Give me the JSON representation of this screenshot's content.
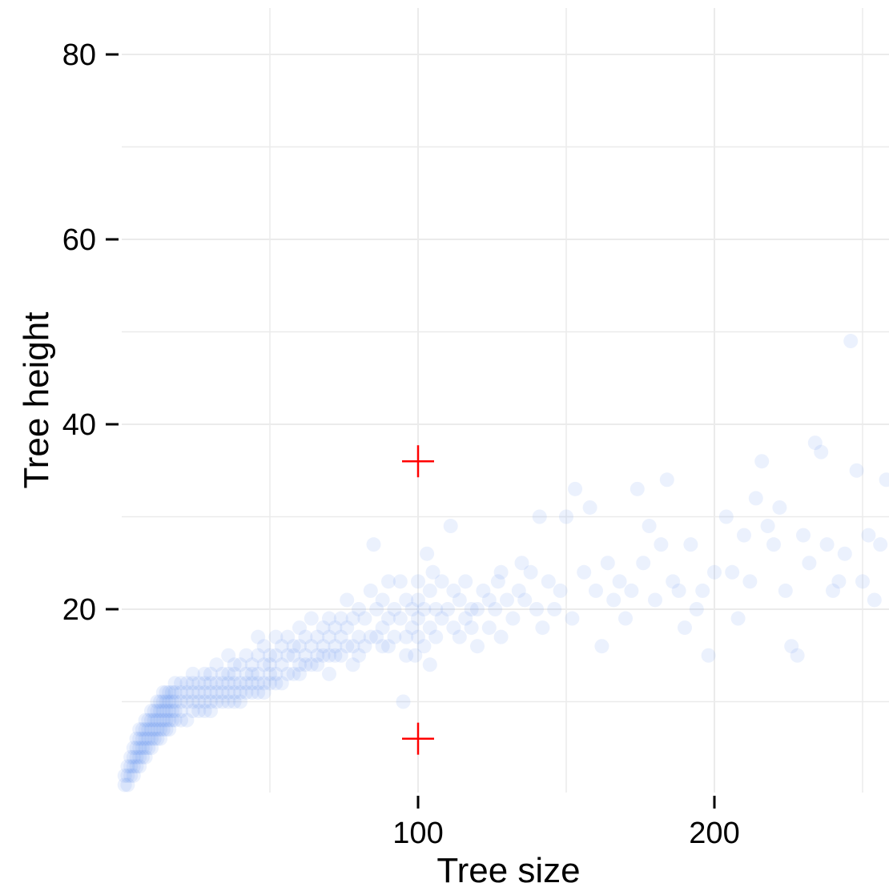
{
  "chart_data": {
    "type": "scatter",
    "title": "",
    "xlabel": "Tree size",
    "ylabel": "Tree height",
    "xlim": [
      0,
      260
    ],
    "ylim": [
      0,
      85
    ],
    "x_ticks": [
      100,
      200
    ],
    "y_ticks": [
      20,
      40,
      60,
      80
    ],
    "grid": true,
    "colors": {
      "points": "#6495ED",
      "markers": "#FF0000",
      "grid": "#ebebeb"
    },
    "series": [
      {
        "type": "scatter",
        "style": "semi-transparent circles",
        "points": [
          [
            1,
            1
          ],
          [
            1,
            2
          ],
          [
            2,
            1
          ],
          [
            2,
            2
          ],
          [
            2,
            3
          ],
          [
            3,
            2
          ],
          [
            3,
            3
          ],
          [
            3,
            4
          ],
          [
            4,
            2
          ],
          [
            4,
            3
          ],
          [
            4,
            4
          ],
          [
            4,
            5
          ],
          [
            5,
            3
          ],
          [
            5,
            4
          ],
          [
            5,
            5
          ],
          [
            5,
            6
          ],
          [
            6,
            3
          ],
          [
            6,
            4
          ],
          [
            6,
            5
          ],
          [
            6,
            6
          ],
          [
            6,
            7
          ],
          [
            7,
            4
          ],
          [
            7,
            5
          ],
          [
            7,
            6
          ],
          [
            7,
            7
          ],
          [
            8,
            4
          ],
          [
            8,
            5
          ],
          [
            8,
            6
          ],
          [
            8,
            7
          ],
          [
            8,
            8
          ],
          [
            9,
            5
          ],
          [
            9,
            6
          ],
          [
            9,
            7
          ],
          [
            9,
            8
          ],
          [
            10,
            5
          ],
          [
            10,
            6
          ],
          [
            10,
            7
          ],
          [
            10,
            8
          ],
          [
            10,
            9
          ],
          [
            11,
            6
          ],
          [
            11,
            7
          ],
          [
            11,
            8
          ],
          [
            11,
            9
          ],
          [
            12,
            6
          ],
          [
            12,
            7
          ],
          [
            12,
            8
          ],
          [
            12,
            9
          ],
          [
            12,
            10
          ],
          [
            13,
            6
          ],
          [
            13,
            7
          ],
          [
            13,
            8
          ],
          [
            13,
            9
          ],
          [
            13,
            10
          ],
          [
            14,
            7
          ],
          [
            14,
            8
          ],
          [
            14,
            9
          ],
          [
            14,
            10
          ],
          [
            14,
            11
          ],
          [
            15,
            7
          ],
          [
            15,
            8
          ],
          [
            15,
            9
          ],
          [
            15,
            10
          ],
          [
            15,
            11
          ],
          [
            16,
            7
          ],
          [
            16,
            8
          ],
          [
            16,
            9
          ],
          [
            16,
            10
          ],
          [
            16,
            11
          ],
          [
            17,
            8
          ],
          [
            17,
            9
          ],
          [
            17,
            10
          ],
          [
            17,
            11
          ],
          [
            18,
            8
          ],
          [
            18,
            9
          ],
          [
            18,
            10
          ],
          [
            18,
            11
          ],
          [
            18,
            12
          ],
          [
            20,
            8
          ],
          [
            20,
            9
          ],
          [
            20,
            10
          ],
          [
            20,
            11
          ],
          [
            20,
            12
          ],
          [
            22,
            8
          ],
          [
            22,
            10
          ],
          [
            22,
            11
          ],
          [
            22,
            12
          ],
          [
            24,
            9
          ],
          [
            24,
            10
          ],
          [
            24,
            11
          ],
          [
            24,
            12
          ],
          [
            24,
            13
          ],
          [
            26,
            9
          ],
          [
            26,
            10
          ],
          [
            26,
            11
          ],
          [
            26,
            12
          ],
          [
            28,
            9
          ],
          [
            28,
            10
          ],
          [
            28,
            11
          ],
          [
            28,
            12
          ],
          [
            28,
            13
          ],
          [
            30,
            9
          ],
          [
            30,
            10
          ],
          [
            30,
            11
          ],
          [
            30,
            12
          ],
          [
            30,
            13
          ],
          [
            32,
            10
          ],
          [
            32,
            11
          ],
          [
            32,
            12
          ],
          [
            32,
            14
          ],
          [
            34,
            10
          ],
          [
            34,
            11
          ],
          [
            34,
            12
          ],
          [
            34,
            13
          ],
          [
            36,
            10
          ],
          [
            36,
            11
          ],
          [
            36,
            12
          ],
          [
            36,
            13
          ],
          [
            36,
            15
          ],
          [
            38,
            10
          ],
          [
            38,
            11
          ],
          [
            38,
            12
          ],
          [
            38,
            13
          ],
          [
            38,
            14
          ],
          [
            40,
            10
          ],
          [
            40,
            11
          ],
          [
            40,
            12
          ],
          [
            40,
            14
          ],
          [
            42,
            11
          ],
          [
            42,
            12
          ],
          [
            42,
            13
          ],
          [
            42,
            15
          ],
          [
            44,
            11
          ],
          [
            44,
            12
          ],
          [
            44,
            13
          ],
          [
            44,
            14
          ],
          [
            46,
            11
          ],
          [
            46,
            12
          ],
          [
            46,
            13
          ],
          [
            46,
            15
          ],
          [
            46,
            17
          ],
          [
            48,
            11
          ],
          [
            48,
            12
          ],
          [
            48,
            14
          ],
          [
            48,
            16
          ],
          [
            50,
            12
          ],
          [
            50,
            13
          ],
          [
            50,
            14
          ],
          [
            50,
            15
          ],
          [
            52,
            12
          ],
          [
            52,
            13
          ],
          [
            52,
            15
          ],
          [
            52,
            17
          ],
          [
            54,
            12
          ],
          [
            54,
            14
          ],
          [
            54,
            16
          ],
          [
            56,
            13
          ],
          [
            56,
            15
          ],
          [
            56,
            17
          ],
          [
            58,
            13
          ],
          [
            58,
            15
          ],
          [
            58,
            16
          ],
          [
            60,
            13
          ],
          [
            60,
            14
          ],
          [
            60,
            16
          ],
          [
            60,
            18
          ],
          [
            62,
            14
          ],
          [
            62,
            15
          ],
          [
            62,
            17
          ],
          [
            64,
            14
          ],
          [
            64,
            16
          ],
          [
            64,
            19
          ],
          [
            66,
            14
          ],
          [
            66,
            15
          ],
          [
            66,
            17
          ],
          [
            68,
            15
          ],
          [
            68,
            16
          ],
          [
            68,
            18
          ],
          [
            70,
            13
          ],
          [
            70,
            15
          ],
          [
            70,
            17
          ],
          [
            70,
            19
          ],
          [
            72,
            15
          ],
          [
            72,
            16
          ],
          [
            72,
            18
          ],
          [
            74,
            15
          ],
          [
            74,
            17
          ],
          [
            74,
            19
          ],
          [
            76,
            16
          ],
          [
            76,
            18
          ],
          [
            76,
            21
          ],
          [
            78,
            14
          ],
          [
            78,
            16
          ],
          [
            78,
            19
          ],
          [
            80,
            15
          ],
          [
            80,
            17
          ],
          [
            80,
            20
          ],
          [
            82,
            16
          ],
          [
            82,
            19
          ],
          [
            84,
            17
          ],
          [
            84,
            22
          ],
          [
            85,
            27
          ],
          [
            86,
            17
          ],
          [
            86,
            20
          ],
          [
            88,
            16
          ],
          [
            88,
            18
          ],
          [
            88,
            21
          ],
          [
            90,
            16
          ],
          [
            90,
            19
          ],
          [
            90,
            23
          ],
          [
            92,
            17
          ],
          [
            92,
            20
          ],
          [
            94,
            19
          ],
          [
            94,
            23
          ],
          [
            95,
            10
          ],
          [
            96,
            15
          ],
          [
            96,
            17
          ],
          [
            96,
            21
          ],
          [
            98,
            18
          ],
          [
            98,
            20
          ],
          [
            99,
            15
          ],
          [
            100,
            17
          ],
          [
            100,
            19
          ],
          [
            100,
            21
          ],
          [
            100,
            23
          ],
          [
            102,
            16
          ],
          [
            102,
            20
          ],
          [
            103,
            26
          ],
          [
            104,
            14
          ],
          [
            104,
            18
          ],
          [
            104,
            22
          ],
          [
            105,
            24
          ],
          [
            106,
            17
          ],
          [
            106,
            20
          ],
          [
            108,
            19
          ],
          [
            108,
            23
          ],
          [
            110,
            20
          ],
          [
            111,
            29
          ],
          [
            112,
            18
          ],
          [
            112,
            22
          ],
          [
            114,
            17
          ],
          [
            114,
            21
          ],
          [
            116,
            19
          ],
          [
            116,
            23
          ],
          [
            118,
            18
          ],
          [
            118,
            20
          ],
          [
            120,
            16
          ],
          [
            120,
            20
          ],
          [
            122,
            22
          ],
          [
            124,
            18
          ],
          [
            124,
            21
          ],
          [
            126,
            20
          ],
          [
            127,
            23
          ],
          [
            128,
            17
          ],
          [
            128,
            24
          ],
          [
            130,
            21
          ],
          [
            132,
            19
          ],
          [
            134,
            22
          ],
          [
            135,
            25
          ],
          [
            136,
            21
          ],
          [
            138,
            24
          ],
          [
            140,
            20
          ],
          [
            141,
            30
          ],
          [
            142,
            18
          ],
          [
            144,
            23
          ],
          [
            146,
            20
          ],
          [
            148,
            22
          ],
          [
            150,
            30
          ],
          [
            152,
            19
          ],
          [
            153,
            33
          ],
          [
            156,
            24
          ],
          [
            158,
            31
          ],
          [
            160,
            22
          ],
          [
            162,
            16
          ],
          [
            164,
            25
          ],
          [
            166,
            21
          ],
          [
            168,
            23
          ],
          [
            170,
            19
          ],
          [
            172,
            22
          ],
          [
            174,
            33
          ],
          [
            176,
            25
          ],
          [
            178,
            29
          ],
          [
            180,
            21
          ],
          [
            182,
            27
          ],
          [
            184,
            34
          ],
          [
            186,
            23
          ],
          [
            188,
            22
          ],
          [
            190,
            18
          ],
          [
            192,
            27
          ],
          [
            194,
            20
          ],
          [
            196,
            22
          ],
          [
            198,
            15
          ],
          [
            200,
            24
          ],
          [
            204,
            30
          ],
          [
            206,
            24
          ],
          [
            208,
            19
          ],
          [
            210,
            28
          ],
          [
            212,
            23
          ],
          [
            214,
            32
          ],
          [
            216,
            36
          ],
          [
            218,
            29
          ],
          [
            220,
            27
          ],
          [
            222,
            31
          ],
          [
            224,
            22
          ],
          [
            226,
            16
          ],
          [
            228,
            15
          ],
          [
            230,
            28
          ],
          [
            232,
            25
          ],
          [
            234,
            38
          ],
          [
            236,
            37
          ],
          [
            238,
            27
          ],
          [
            240,
            22
          ],
          [
            242,
            23
          ],
          [
            244,
            26
          ],
          [
            246,
            49
          ],
          [
            248,
            35
          ],
          [
            250,
            23
          ],
          [
            252,
            28
          ],
          [
            254,
            21
          ],
          [
            256,
            27
          ],
          [
            258,
            34
          ],
          [
            259,
            25
          ]
        ]
      },
      {
        "type": "marker",
        "style": "red plus",
        "points": [
          [
            100,
            36
          ],
          [
            100,
            6
          ]
        ]
      }
    ]
  }
}
